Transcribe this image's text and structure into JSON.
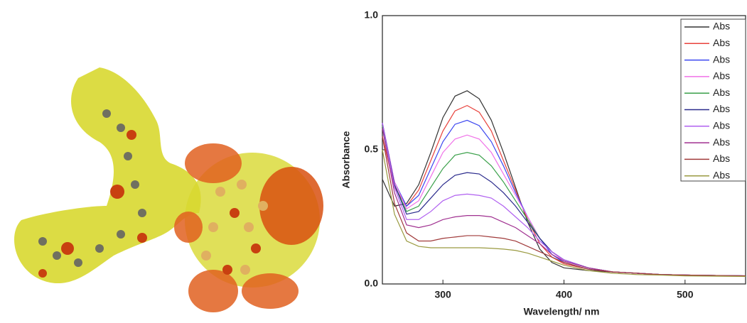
{
  "chart_data": {
    "type": "line",
    "x_label": "Wavelength/ nm",
    "y_label": "Absorbance",
    "x": [
      250,
      260,
      270,
      280,
      290,
      300,
      310,
      320,
      330,
      340,
      350,
      360,
      370,
      380,
      390,
      400,
      420,
      440,
      460,
      480,
      500,
      550
    ],
    "xlim": [
      250,
      550
    ],
    "xticks": [
      300,
      400,
      500
    ],
    "ylim": [
      0,
      1
    ],
    "yticks": [
      {
        "value": 0,
        "label": "0.0"
      },
      {
        "value": 0.5,
        "label": "0.5"
      },
      {
        "value": 1,
        "label": "1.0"
      }
    ],
    "legend": "top-right",
    "series": [
      {
        "name": "Abs",
        "color": "#333333",
        "values": [
          0.39,
          0.29,
          0.3,
          0.37,
          0.49,
          0.62,
          0.7,
          0.72,
          0.69,
          0.61,
          0.49,
          0.36,
          0.23,
          0.13,
          0.08,
          0.06,
          0.05,
          0.045,
          0.04,
          0.035,
          0.033,
          0.03
        ]
      },
      {
        "name": "Abs",
        "color": "#e8413b",
        "values": [
          0.55,
          0.36,
          0.29,
          0.35,
          0.46,
          0.57,
          0.645,
          0.665,
          0.64,
          0.57,
          0.46,
          0.35,
          0.24,
          0.15,
          0.1,
          0.075,
          0.055,
          0.045,
          0.04,
          0.035,
          0.033,
          0.03
        ]
      },
      {
        "name": "Abs",
        "color": "#3b46f0",
        "values": [
          0.6,
          0.38,
          0.29,
          0.33,
          0.43,
          0.53,
          0.595,
          0.61,
          0.59,
          0.53,
          0.44,
          0.34,
          0.25,
          0.17,
          0.11,
          0.08,
          0.055,
          0.045,
          0.04,
          0.035,
          0.033,
          0.03
        ]
      },
      {
        "name": "Abs",
        "color": "#f070e8",
        "values": [
          0.6,
          0.38,
          0.28,
          0.31,
          0.4,
          0.49,
          0.54,
          0.555,
          0.54,
          0.49,
          0.41,
          0.33,
          0.25,
          0.17,
          0.12,
          0.085,
          0.06,
          0.045,
          0.04,
          0.035,
          0.033,
          0.03
        ]
      },
      {
        "name": "Abs",
        "color": "#3aa04a",
        "values": [
          0.59,
          0.37,
          0.27,
          0.29,
          0.36,
          0.43,
          0.48,
          0.49,
          0.48,
          0.44,
          0.38,
          0.31,
          0.24,
          0.17,
          0.12,
          0.09,
          0.06,
          0.045,
          0.04,
          0.035,
          0.033,
          0.03
        ]
      },
      {
        "name": "Abs",
        "color": "#2a2a8c",
        "values": [
          0.6,
          0.37,
          0.26,
          0.27,
          0.32,
          0.37,
          0.405,
          0.415,
          0.41,
          0.38,
          0.34,
          0.29,
          0.23,
          0.17,
          0.12,
          0.09,
          0.06,
          0.045,
          0.04,
          0.035,
          0.033,
          0.03
        ]
      },
      {
        "name": "Abs",
        "color": "#b060f0",
        "values": [
          0.6,
          0.36,
          0.24,
          0.24,
          0.27,
          0.31,
          0.33,
          0.335,
          0.33,
          0.32,
          0.29,
          0.25,
          0.21,
          0.16,
          0.12,
          0.09,
          0.06,
          0.045,
          0.04,
          0.035,
          0.033,
          0.03
        ]
      },
      {
        "name": "Abs",
        "color": "#a03090",
        "values": [
          0.58,
          0.34,
          0.22,
          0.21,
          0.22,
          0.24,
          0.25,
          0.255,
          0.255,
          0.25,
          0.23,
          0.21,
          0.18,
          0.15,
          0.11,
          0.085,
          0.06,
          0.045,
          0.04,
          0.035,
          0.033,
          0.03
        ]
      },
      {
        "name": "Abs",
        "color": "#a03a3a",
        "values": [
          0.55,
          0.3,
          0.19,
          0.16,
          0.16,
          0.17,
          0.175,
          0.18,
          0.18,
          0.175,
          0.17,
          0.16,
          0.14,
          0.12,
          0.1,
          0.08,
          0.055,
          0.045,
          0.04,
          0.035,
          0.033,
          0.03
        ]
      },
      {
        "name": "Abs",
        "color": "#9a9a40",
        "values": [
          0.5,
          0.26,
          0.16,
          0.14,
          0.135,
          0.135,
          0.135,
          0.135,
          0.135,
          0.133,
          0.13,
          0.125,
          0.115,
          0.1,
          0.085,
          0.07,
          0.05,
          0.04,
          0.035,
          0.033,
          0.03,
          0.028
        ]
      }
    ]
  }
}
